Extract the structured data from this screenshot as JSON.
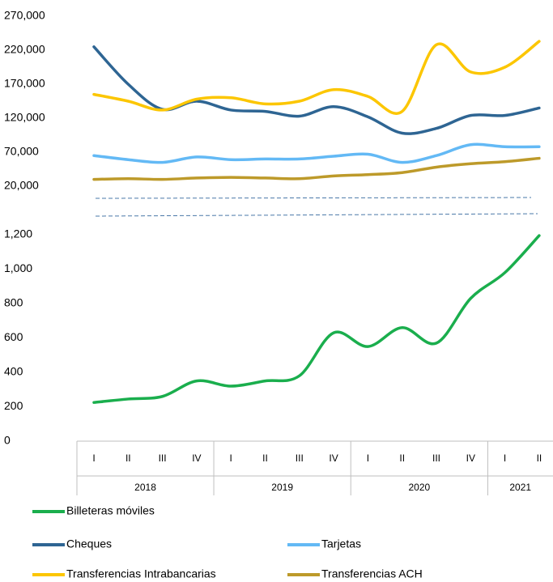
{
  "chart_data": [
    {
      "type": "line",
      "ylim": [
        20000,
        270000
      ],
      "yticks": [
        {
          "value": 20000,
          "label": "20,000"
        },
        {
          "value": 70000,
          "label": "70,000"
        },
        {
          "value": 120000,
          "label": "120,000"
        },
        {
          "value": 170000,
          "label": "170,000"
        },
        {
          "value": 220000,
          "label": "220,000"
        },
        {
          "value": 270000,
          "label": "270,000"
        }
      ],
      "series": [
        {
          "name": "Cheques",
          "color": "#2e6593",
          "values": [
            225000,
            170000,
            133000,
            145000,
            132000,
            130000,
            123000,
            137000,
            122000,
            98000,
            105000,
            124000,
            124000,
            135000
          ]
        },
        {
          "name": "Tarjetas",
          "color": "#63b9f5",
          "values": [
            65000,
            59000,
            55000,
            63000,
            59000,
            60000,
            60000,
            64000,
            67000,
            55000,
            65000,
            81000,
            78000,
            78000
          ]
        },
        {
          "name": "Transferencias Intrabancarias",
          "color": "#fcc600",
          "values": [
            155000,
            145000,
            132000,
            148000,
            150000,
            141000,
            145000,
            162000,
            152000,
            130000,
            228000,
            188000,
            195000,
            233000
          ]
        },
        {
          "name": "Transferencias ACH",
          "color": "#bd9a2a",
          "values": [
            30000,
            31000,
            30000,
            32000,
            33000,
            32000,
            31000,
            35000,
            37000,
            40000,
            48000,
            53000,
            56000,
            61000
          ]
        }
      ]
    },
    {
      "type": "line",
      "ylim": [
        0,
        1200
      ],
      "yticks": [
        0,
        200,
        400,
        600,
        800,
        {
          "value": 1000,
          "label": "1,000"
        },
        {
          "value": 1200,
          "label": "1,200"
        }
      ],
      "categories": [
        "I",
        "II",
        "III",
        "IV",
        "I",
        "II",
        "III",
        "IV",
        "I",
        "II",
        "III",
        "IV",
        "I",
        "II"
      ],
      "x_groups": [
        "2018",
        "2018",
        "2018",
        "2018",
        "2019",
        "2019",
        "2019",
        "2019",
        "2020",
        "2020",
        "2020",
        "2020",
        "2021",
        "2021"
      ],
      "series": [
        {
          "name": "Billeteras móviles",
          "color": "#1aae4d",
          "values": [
            225,
            245,
            260,
            350,
            320,
            350,
            380,
            630,
            550,
            660,
            570,
            830,
            980,
            1195
          ]
        }
      ]
    }
  ]
}
